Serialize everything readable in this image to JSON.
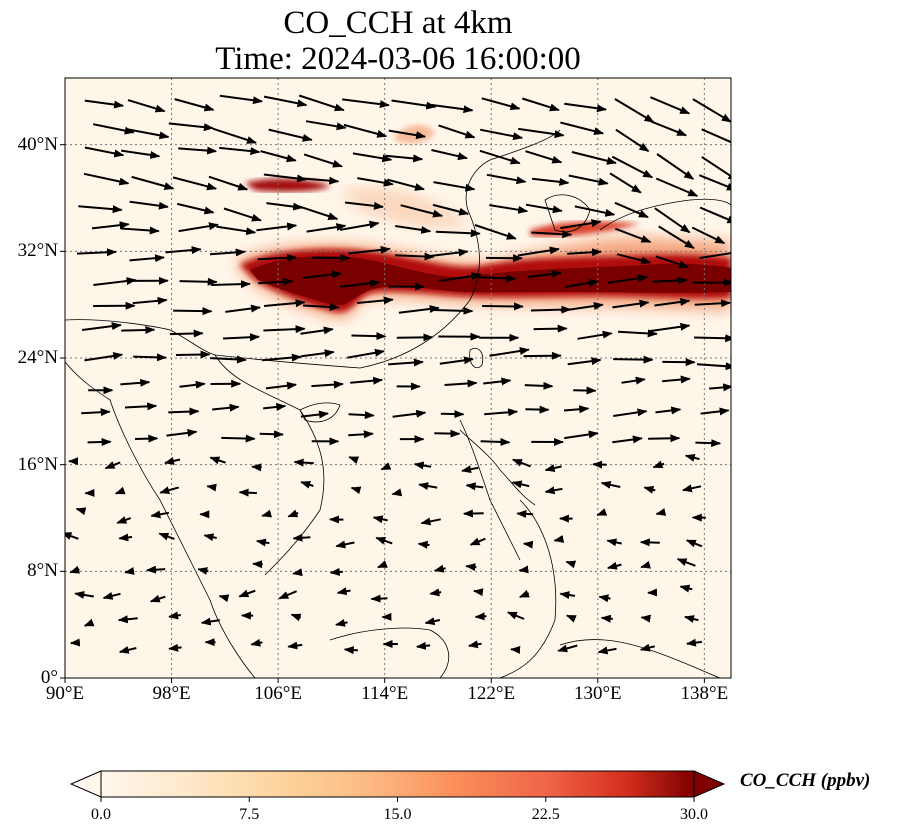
{
  "title": {
    "line1": "CO_CCH at 4km",
    "line2": "Time: 2024-03-06 16:00:00"
  },
  "map": {
    "type": "wind-vector field over concentration map",
    "lon_range": [
      90,
      140
    ],
    "lat_range": [
      0,
      45
    ],
    "gridlines": true,
    "lat_ticks": [
      {
        "value": 0,
        "label": "0°"
      },
      {
        "value": 8,
        "label": "8°N"
      },
      {
        "value": 16,
        "label": "16°N"
      },
      {
        "value": 24,
        "label": "24°N"
      },
      {
        "value": 32,
        "label": "32°N"
      },
      {
        "value": 40,
        "label": "40°N"
      }
    ],
    "lon_ticks": [
      {
        "value": 90,
        "label": "90°E"
      },
      {
        "value": 98,
        "label": "98°E"
      },
      {
        "value": 106,
        "label": "106°E"
      },
      {
        "value": 114,
        "label": "114°E"
      },
      {
        "value": 122,
        "label": "122°E"
      },
      {
        "value": 130,
        "label": "130°E"
      },
      {
        "value": 138,
        "label": "138°E"
      }
    ],
    "plume_color": "#8b0000",
    "arrow_color": "#000000"
  },
  "colorbar": {
    "label": "CO_CCH (ppbv)",
    "range": [
      0,
      30
    ],
    "extend": "both",
    "colormap": "OrRd",
    "ticks": [
      {
        "value": 0,
        "label": "0.0"
      },
      {
        "value": 7.5,
        "label": "7.5"
      },
      {
        "value": 15,
        "label": "15.0"
      },
      {
        "value": 22.5,
        "label": "22.5"
      },
      {
        "value": 30,
        "label": "30.0"
      }
    ]
  }
}
